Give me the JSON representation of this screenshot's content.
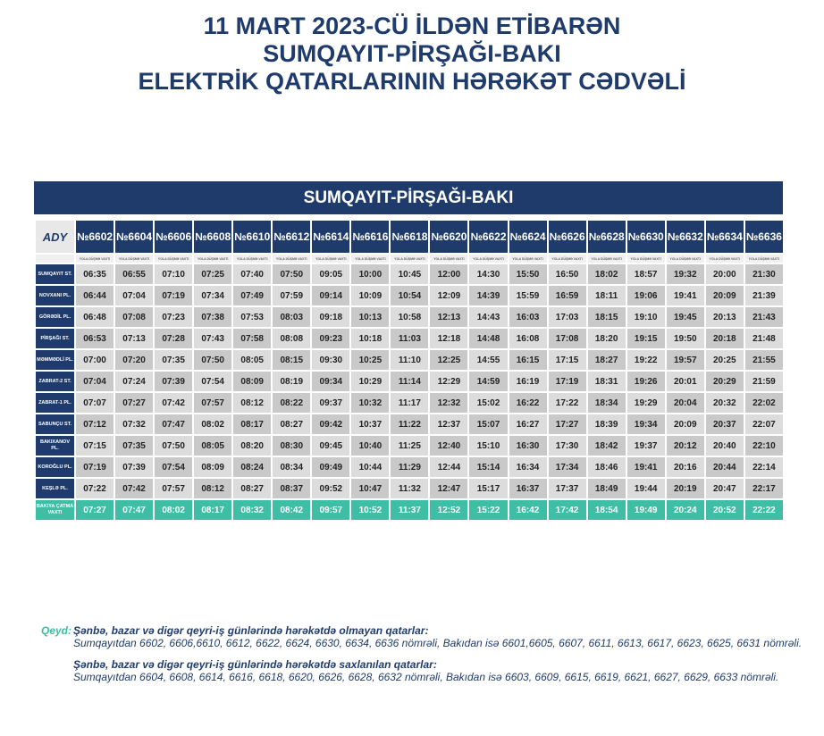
{
  "title": [
    "11 MART 2023-CÜ İLDƏN ETİBARƏN",
    "SUMQAYIT-PİRŞAĞI-BAKI",
    "ELEKTRİK QATARLARININ HƏRƏKƏT CƏDVƏLİ"
  ],
  "table_title": "SUMQAYIT-PİRŞAĞI-BAKI",
  "logo": "ADY",
  "sub_label": "YOLA DÜŞMƏ VAXTI",
  "trains": [
    "№6602",
    "№6604",
    "№6606",
    "№6608",
    "№6610",
    "№6612",
    "№6614",
    "№6616",
    "№6618",
    "№6620",
    "№6622",
    "№6624",
    "№6626",
    "№6628",
    "№6630",
    "№6632",
    "№6634",
    "№6636"
  ],
  "rows": [
    {
      "station": "SUMQAYIT ST.",
      "times": [
        "06:35",
        "06:55",
        "07:10",
        "07:25",
        "07:40",
        "07:50",
        "09:05",
        "10:00",
        "10:45",
        "12:00",
        "14:30",
        "15:50",
        "16:50",
        "18:02",
        "18:57",
        "19:32",
        "20:00",
        "21:30"
      ]
    },
    {
      "station": "NOVXANI PL.",
      "times": [
        "06:44",
        "07:04",
        "07:19",
        "07:34",
        "07:49",
        "07:59",
        "09:14",
        "10:09",
        "10:54",
        "12:09",
        "14:39",
        "15:59",
        "16:59",
        "18:11",
        "19:06",
        "19:41",
        "20:09",
        "21:39"
      ]
    },
    {
      "station": "GÖRƏDİL PL.",
      "times": [
        "06:48",
        "07:08",
        "07:23",
        "07:38",
        "07:53",
        "08:03",
        "09:18",
        "10:13",
        "10:58",
        "12:13",
        "14:43",
        "16:03",
        "17:03",
        "18:15",
        "19:10",
        "19:45",
        "20:13",
        "21:43"
      ]
    },
    {
      "station": "PİRŞAĞI ST.",
      "times": [
        "06:53",
        "07:13",
        "07:28",
        "07:43",
        "07:58",
        "08:08",
        "09:23",
        "10:18",
        "11:03",
        "12:18",
        "14:48",
        "16:08",
        "17:08",
        "18:20",
        "19:15",
        "19:50",
        "20:18",
        "21:48"
      ]
    },
    {
      "station": "MƏMMƏDLİ PL.",
      "times": [
        "07:00",
        "07:20",
        "07:35",
        "07:50",
        "08:05",
        "08:15",
        "09:30",
        "10:25",
        "11:10",
        "12:25",
        "14:55",
        "16:15",
        "17:15",
        "18:27",
        "19:22",
        "19:57",
        "20:25",
        "21:55"
      ]
    },
    {
      "station": "ZABRAT-2 ST.",
      "times": [
        "07:04",
        "07:24",
        "07:39",
        "07:54",
        "08:09",
        "08:19",
        "09:34",
        "10:29",
        "11:14",
        "12:29",
        "14:59",
        "16:19",
        "17:19",
        "18:31",
        "19:26",
        "20:01",
        "20:29",
        "21:59"
      ]
    },
    {
      "station": "ZABRAT-1 PL.",
      "times": [
        "07:07",
        "07:27",
        "07:42",
        "07:57",
        "08:12",
        "08:22",
        "09:37",
        "10:32",
        "11:17",
        "12:32",
        "15:02",
        "16:22",
        "17:22",
        "18:34",
        "19:29",
        "20:04",
        "20:32",
        "22:02"
      ]
    },
    {
      "station": "SABUNÇU ST.",
      "times": [
        "07:12",
        "07:32",
        "07:47",
        "08:02",
        "08:17",
        "08:27",
        "09:42",
        "10:37",
        "11:22",
        "12:37",
        "15:07",
        "16:27",
        "17:27",
        "18:39",
        "19:34",
        "20:09",
        "20:37",
        "22:07"
      ]
    },
    {
      "station": "BAKIXANOV PL.",
      "times": [
        "07:15",
        "07:35",
        "07:50",
        "08:05",
        "08:20",
        "08:30",
        "09:45",
        "10:40",
        "11:25",
        "12:40",
        "15:10",
        "16:30",
        "17:30",
        "18:42",
        "19:37",
        "20:12",
        "20:40",
        "22:10"
      ]
    },
    {
      "station": "KOROĞLU PL.",
      "times": [
        "07:19",
        "07:39",
        "07:54",
        "08:09",
        "08:24",
        "08:34",
        "09:49",
        "10:44",
        "11:29",
        "12:44",
        "15:14",
        "16:34",
        "17:34",
        "18:46",
        "19:41",
        "20:16",
        "20:44",
        "22:14"
      ]
    },
    {
      "station": "KEŞLƏ PL.",
      "times": [
        "07:22",
        "07:42",
        "07:57",
        "08:12",
        "08:27",
        "08:37",
        "09:52",
        "10:47",
        "11:32",
        "12:47",
        "15:17",
        "16:37",
        "17:37",
        "18:49",
        "19:44",
        "20:19",
        "20:47",
        "22:17"
      ]
    },
    {
      "station": "BAKIYA ÇATMA VAXTI",
      "times": [
        "07:27",
        "07:47",
        "08:02",
        "08:17",
        "08:32",
        "08:42",
        "09:57",
        "10:52",
        "11:37",
        "12:52",
        "15:22",
        "16:42",
        "17:42",
        "18:54",
        "19:49",
        "20:24",
        "20:52",
        "22:22"
      ]
    }
  ],
  "notes": {
    "label": "Qeyd:",
    "h1": "Şənbə, bazar və digər qeyri-iş günlərində hərəkətdə olmayan qatarlar:",
    "t1": "Sumqayıtdan 6602, 6606,6610, 6612, 6622, 6624, 6630, 6634, 6636  nömrəli, Bakıdan isə 6601,6605, 6607, 6611, 6613, 6617, 6623, 6625, 6631 nömrəli.",
    "h2": "Şənbə, bazar və digər qeyri-iş günlərində hərəkətdə saxlanılan qatarlar:",
    "t2": "Sumqayıtdan 6604, 6608, 6614, 6616, 6618, 6620, 6626, 6628, 6632 nömrəli, Bakıdan isə 6603, 6609, 6615, 6619, 6621, 6627, 6629, 6633  nömrəli."
  },
  "colors": {
    "navy": "#1f3b6b",
    "teal": "#3dbea5"
  }
}
